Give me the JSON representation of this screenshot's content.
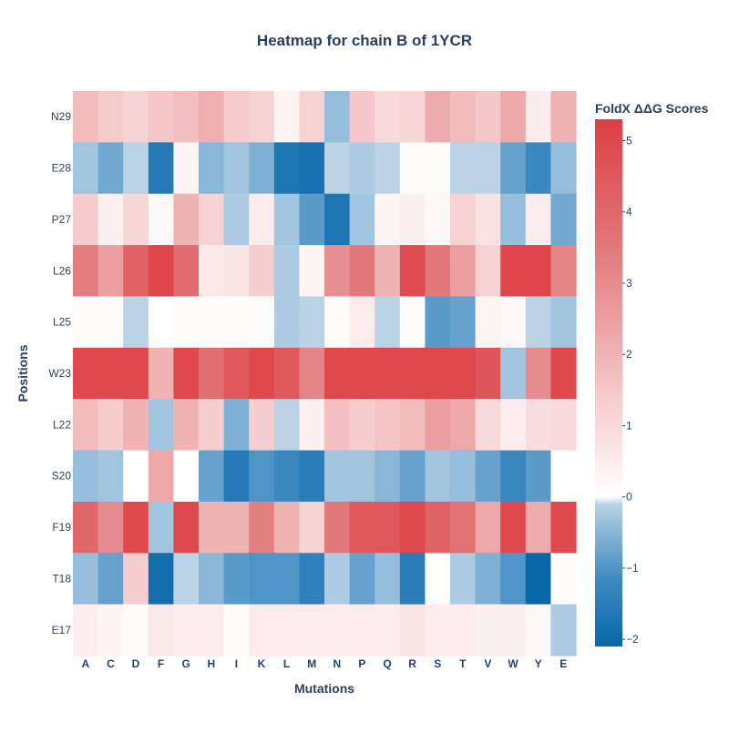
{
  "chart_data": {
    "type": "heatmap",
    "title": "Heatmap for chain B of 1YCR",
    "xlabel": "Mutations",
    "ylabel": "Positions",
    "x": [
      "A",
      "C",
      "D",
      "F",
      "G",
      "H",
      "I",
      "K",
      "L",
      "M",
      "N",
      "P",
      "Q",
      "R",
      "S",
      "T",
      "V",
      "W",
      "Y",
      "E"
    ],
    "y": [
      "N29",
      "E28",
      "P27",
      "L26",
      "L25",
      "W23",
      "L22",
      "S20",
      "F19",
      "T18",
      "E17"
    ],
    "z": [
      [
        1.8,
        1.4,
        1.2,
        1.5,
        1.7,
        2.1,
        1.4,
        1.2,
        0.3,
        1.2,
        -0.4,
        1.5,
        1.0,
        1.1,
        2.2,
        1.8,
        1.5,
        2.3,
        0.5,
        2.0
      ],
      [
        -0.3,
        -0.7,
        -0.1,
        -1.6,
        0.3,
        -0.5,
        -0.3,
        -0.6,
        -1.7,
        -1.8,
        -0.1,
        -0.2,
        -0.1,
        0.1,
        0.1,
        -0.1,
        -0.1,
        -0.8,
        -1.2,
        -0.4
      ],
      [
        1.4,
        0.4,
        1.1,
        0.2,
        2.0,
        1.2,
        -0.2,
        0.5,
        -0.3,
        -0.9,
        -1.7,
        -0.3,
        0.3,
        0.4,
        0.2,
        1.2,
        0.8,
        -0.4,
        0.5,
        -0.7
      ],
      [
        3.4,
        2.5,
        4.2,
        5.1,
        3.9,
        0.6,
        0.7,
        1.3,
        -0.2,
        0.3,
        2.9,
        3.5,
        2.0,
        4.9,
        3.5,
        2.5,
        1.2,
        5.1,
        5.1,
        3.2
      ],
      [
        0.1,
        0.1,
        -0.1,
        0.0,
        0.1,
        0.1,
        0.1,
        0.1,
        -0.2,
        -0.1,
        0.1,
        0.5,
        -0.1,
        0.1,
        -0.9,
        -0.8,
        0.3,
        0.2,
        -0.1,
        -0.3
      ],
      [
        5.0,
        5.0,
        5.0,
        2.0,
        5.0,
        3.8,
        4.5,
        5.0,
        4.5,
        3.2,
        5.0,
        5.0,
        5.0,
        5.0,
        5.0,
        5.0,
        4.6,
        -0.3,
        3.0,
        5.0
      ],
      [
        1.8,
        1.4,
        2.0,
        -0.3,
        2.0,
        1.3,
        -0.6,
        1.3,
        -0.1,
        0.4,
        1.7,
        1.3,
        1.6,
        1.8,
        2.5,
        2.3,
        1.0,
        0.5,
        0.9,
        1.0
      ],
      [
        -0.4,
        -0.3,
        0.0,
        2.3,
        0.0,
        -0.8,
        -1.6,
        -1.0,
        -1.2,
        -1.5,
        -0.3,
        -0.3,
        -0.5,
        -0.8,
        -0.3,
        -0.4,
        -0.8,
        -1.2,
        -0.9,
        0.0
      ],
      [
        4.0,
        3.0,
        5.0,
        -0.3,
        5.0,
        2.0,
        2.0,
        3.3,
        2.0,
        1.2,
        3.5,
        4.5,
        4.5,
        5.0,
        4.2,
        3.7,
        2.3,
        5.0,
        2.2,
        5.0
      ],
      [
        -0.4,
        -0.8,
        1.3,
        -1.9,
        -0.1,
        -0.5,
        -0.9,
        -1.0,
        -1.0,
        -1.4,
        -0.2,
        -0.8,
        -0.4,
        -1.5,
        0.0,
        -0.2,
        -0.6,
        -1.0,
        -2.4,
        0.1
      ],
      [
        0.5,
        0.3,
        0.1,
        0.6,
        0.5,
        0.5,
        0.1,
        0.5,
        0.5,
        0.5,
        0.5,
        0.5,
        0.5,
        0.7,
        0.5,
        0.5,
        0.4,
        0.4,
        0.2,
        -0.2
      ]
    ],
    "zmin": -2.1,
    "zmax": 5.3,
    "colorscale": [
      [
        0.0,
        "#0767a8"
      ],
      [
        0.13,
        "#3f8ac2"
      ],
      [
        0.27,
        "#b9d3e6"
      ],
      [
        0.284,
        "#ffffff"
      ],
      [
        0.5,
        "#f4c3c4"
      ],
      [
        0.75,
        "#e27a7c"
      ],
      [
        1.0,
        "#de3e44"
      ]
    ],
    "colorbar": {
      "title": "FoldX ΔΔG Scores",
      "ticks": [
        5,
        4,
        3,
        2,
        1,
        0,
        -1,
        -2
      ],
      "tick_labels": [
        "5",
        "4",
        "3",
        "2",
        "1",
        "0",
        "−1",
        "−2"
      ]
    }
  }
}
